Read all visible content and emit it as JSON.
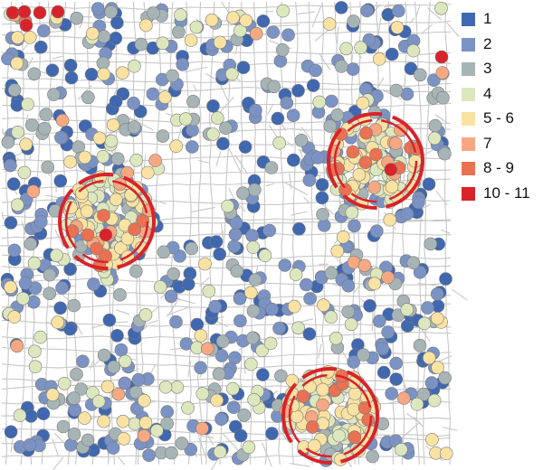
{
  "map": {
    "road_color": "#c7c7c7",
    "point_stroke": "#7b7b7b",
    "hotspot_color": "#d8232a"
  },
  "legend": {
    "items": [
      {
        "label": "1",
        "color": "#3f68b0"
      },
      {
        "label": "2",
        "color": "#7b93c4"
      },
      {
        "label": "3",
        "color": "#a7b4b6"
      },
      {
        "label": "4",
        "color": "#dde7bd"
      },
      {
        "label": "5 - 6",
        "color": "#f9e2a2"
      },
      {
        "label": "7",
        "color": "#f5a882"
      },
      {
        "label": "8 - 9",
        "color": "#ea7151"
      },
      {
        "label": "10 - 11",
        "color": "#d8232a"
      }
    ]
  }
}
